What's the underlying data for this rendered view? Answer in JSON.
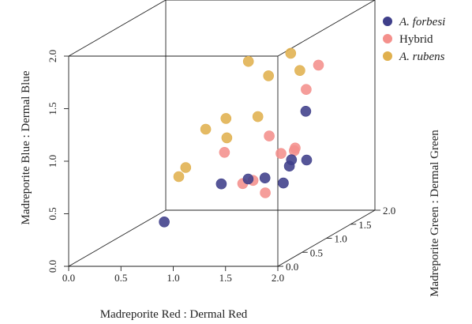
{
  "chart_data": {
    "type": "scatter",
    "projection": "3d",
    "xlabel": "Madreporite Red : Dermal Red",
    "ylabel": "Madreporite Blue : Dermal Blue",
    "zlabel": "Madreporite Green : Dermal Green",
    "xlim": [
      0,
      2
    ],
    "ylim": [
      0,
      2
    ],
    "zlim": [
      0,
      2
    ],
    "x_ticks": [
      "0.0",
      "0.5",
      "1.0",
      "1.5",
      "2.0"
    ],
    "y_ticks": [
      "0.0",
      "0.5",
      "1.0",
      "1.5",
      "2.0"
    ],
    "z_ticks": [
      "0.0",
      "0.5",
      "1.0",
      "1.5",
      "2.0"
    ],
    "legend_position": "top-right",
    "grid": false,
    "series": [
      {
        "name": "A. forbesi",
        "italic": true,
        "color": "#3f3f8a",
        "points": [
          [
            0.84,
            0.38,
            0.16
          ],
          [
            1.07,
            0.56,
            0.84
          ],
          [
            1.28,
            0.58,
            0.94
          ],
          [
            1.32,
            0.52,
            1.2
          ],
          [
            1.44,
            0.44,
            1.32
          ],
          [
            1.6,
            0.66,
            1.1
          ],
          [
            1.62,
            0.72,
            1.1
          ],
          [
            1.7,
            0.68,
            1.24
          ],
          [
            1.58,
            1.08,
            1.48
          ]
        ]
      },
      {
        "name": "Hybrid",
        "italic": false,
        "color": "#f4908c",
        "points": [
          [
            1.2,
            0.52,
            1.0
          ],
          [
            1.28,
            0.54,
            1.04
          ],
          [
            1.36,
            0.4,
            1.12
          ],
          [
            1.1,
            0.86,
            0.84
          ],
          [
            1.52,
            0.78,
            1.1
          ],
          [
            1.6,
            0.78,
            1.2
          ],
          [
            1.5,
            1.0,
            0.9
          ],
          [
            1.6,
            0.8,
            1.22
          ],
          [
            1.64,
            1.32,
            1.36
          ],
          [
            1.72,
            1.53,
            1.44
          ]
        ]
      },
      {
        "name": "A. rubens",
        "italic": true,
        "color": "#e0b04e",
        "points": [
          [
            0.96,
            0.8,
            0.2
          ],
          [
            0.98,
            0.86,
            0.3
          ],
          [
            0.92,
            1.08,
            0.84
          ],
          [
            1.04,
            1.14,
            1.0
          ],
          [
            1.16,
            1.02,
            0.76
          ],
          [
            1.28,
            1.12,
            1.14
          ],
          [
            1.28,
            1.45,
            1.36
          ],
          [
            1.18,
            1.64,
            1.16
          ],
          [
            1.38,
            1.6,
            1.6
          ],
          [
            1.44,
            1.42,
            1.66
          ]
        ]
      }
    ]
  }
}
